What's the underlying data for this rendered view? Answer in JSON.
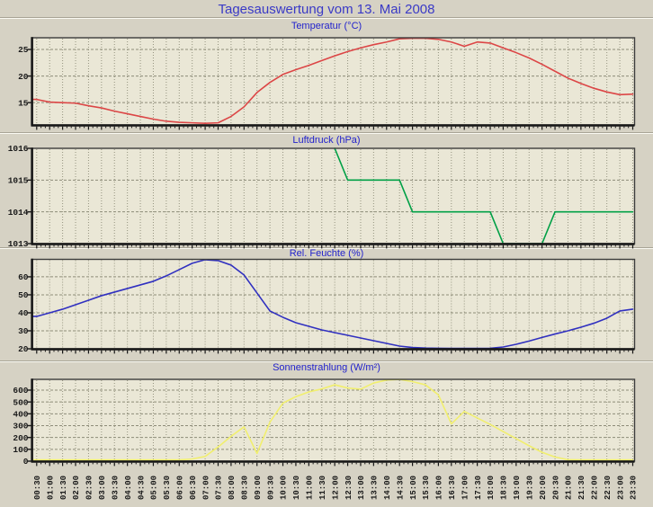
{
  "page": {
    "title": "Tagesauswertung vom 13. Mai 2008"
  },
  "colors": {
    "page_bg": "#d6d2c4",
    "plot_bg": "#eae7d6",
    "grid": "#94937f",
    "hgrid": "#8d8c78",
    "border": "#3c3c3c",
    "border_heavy": "#161616",
    "axis_text": "#1b1b1b",
    "main_title": "#3a3ac6",
    "chart_title": "#2323cc",
    "temperature_line": "#dc4646",
    "pressure_line": "#00a046",
    "humidity_line": "#3030c0",
    "solar_line": "#f1ef6e"
  },
  "chart_data": {
    "type": "line",
    "title": "Tagesauswertung vom 13. Mai 2008",
    "x_labels": [
      "00:30",
      "01:00",
      "01:30",
      "02:00",
      "02:30",
      "03:00",
      "03:30",
      "04:00",
      "04:30",
      "05:00",
      "05:30",
      "06:00",
      "06:30",
      "07:00",
      "07:30",
      "08:00",
      "08:30",
      "09:00",
      "09:30",
      "10:00",
      "10:30",
      "11:00",
      "11:30",
      "12:00",
      "12:30",
      "13:00",
      "13:30",
      "14:00",
      "14:30",
      "15:00",
      "15:30",
      "16:00",
      "16:30",
      "17:00",
      "17:30",
      "18:00",
      "18:30",
      "19:00",
      "19:30",
      "20:00",
      "20:30",
      "21:00",
      "21:30",
      "22:00",
      "22:30",
      "23:00",
      "23:30"
    ],
    "grid": true,
    "legend_position": "none",
    "panels": [
      {
        "id": "temperature",
        "title": "Temperatur (°C)",
        "series_color": "#dc4646",
        "ylim": [
          10.8,
          27.2
        ],
        "y_ticks": [
          15,
          20,
          25
        ],
        "clamp_bottom": false,
        "values": [
          15.6,
          15.1,
          15.0,
          14.9,
          14.4,
          14.0,
          13.4,
          12.9,
          12.4,
          11.9,
          11.5,
          11.3,
          11.2,
          11.1,
          11.2,
          12.4,
          14.2,
          16.9,
          18.8,
          20.3,
          21.2,
          22.0,
          22.9,
          23.8,
          24.6,
          25.3,
          25.9,
          26.4,
          27.0,
          27.1,
          27.1,
          26.9,
          26.4,
          25.6,
          26.4,
          26.2,
          25.3,
          24.4,
          23.4,
          22.2,
          20.9,
          19.6,
          18.6,
          17.7,
          17.0,
          16.5,
          16.6
        ]
      },
      {
        "id": "pressure",
        "title": "Luftdruck (hPa)",
        "series_color": "#00a046",
        "ylim": [
          1013,
          1016
        ],
        "y_ticks": [
          1013,
          1014,
          1015,
          1016
        ],
        "clamp_bottom": false,
        "values": [
          null,
          null,
          null,
          null,
          null,
          null,
          null,
          null,
          null,
          null,
          null,
          null,
          null,
          null,
          null,
          null,
          null,
          null,
          null,
          null,
          null,
          null,
          null,
          1016,
          1015,
          1015,
          1015,
          1015,
          1015,
          1014,
          1014,
          1014,
          1014,
          1014,
          1014,
          1014,
          1013,
          1013,
          1013,
          1013,
          1014,
          1014,
          1014,
          1014,
          1014,
          1014,
          1014
        ]
      },
      {
        "id": "humidity",
        "title": "Rel. Feuchte (%)",
        "series_color": "#3030c0",
        "ylim": [
          20,
          69.7
        ],
        "y_ticks": [
          20,
          30,
          40,
          50,
          60
        ],
        "clamp_bottom": false,
        "values": [
          38,
          40,
          42,
          44.5,
          47,
          49.5,
          51.5,
          53.5,
          55.5,
          57.5,
          60.5,
          64,
          67.5,
          69.5,
          69,
          66.5,
          61,
          51,
          41,
          37.5,
          34.5,
          32.5,
          30.5,
          29,
          27.5,
          26,
          24.5,
          23,
          21.5,
          20.7,
          20.4,
          20.3,
          20.2,
          20.2,
          20.2,
          20.3,
          21,
          22.5,
          24.3,
          26.3,
          28.2,
          30,
          32,
          34.2,
          37,
          41,
          42
        ]
      },
      {
        "id": "solar",
        "title": "Sonnenstrahlung (W/m²)",
        "series_color": "#f1ef6e",
        "ylim": [
          0,
          691
        ],
        "y_ticks": [
          0,
          100,
          200,
          300,
          400,
          500,
          600
        ],
        "clamp_bottom": true,
        "values": [
          0,
          0,
          0,
          0,
          0,
          0,
          0,
          0,
          0,
          0,
          4,
          10,
          18,
          40,
          120,
          210,
          290,
          65,
          330,
          490,
          545,
          585,
          610,
          645,
          618,
          608,
          660,
          685,
          690,
          672,
          645,
          560,
          315,
          420,
          365,
          310,
          250,
          190,
          130,
          75,
          35,
          12,
          2,
          0,
          0,
          0,
          0
        ]
      }
    ]
  }
}
